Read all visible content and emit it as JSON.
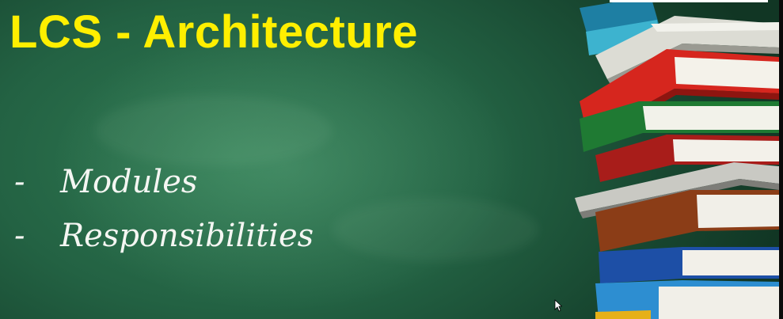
{
  "slide": {
    "title": "LCS - Architecture",
    "bullets": [
      {
        "dash": "-",
        "text": "Modules"
      },
      {
        "dash": "-",
        "text": "Responsibilities"
      }
    ]
  },
  "colors": {
    "title": "#ffef00",
    "board": "#236243",
    "chalk_text": "#f4f6f2"
  },
  "icons": {
    "pointer": "mouse-pointer-icon",
    "books": "book-stack-icon"
  }
}
